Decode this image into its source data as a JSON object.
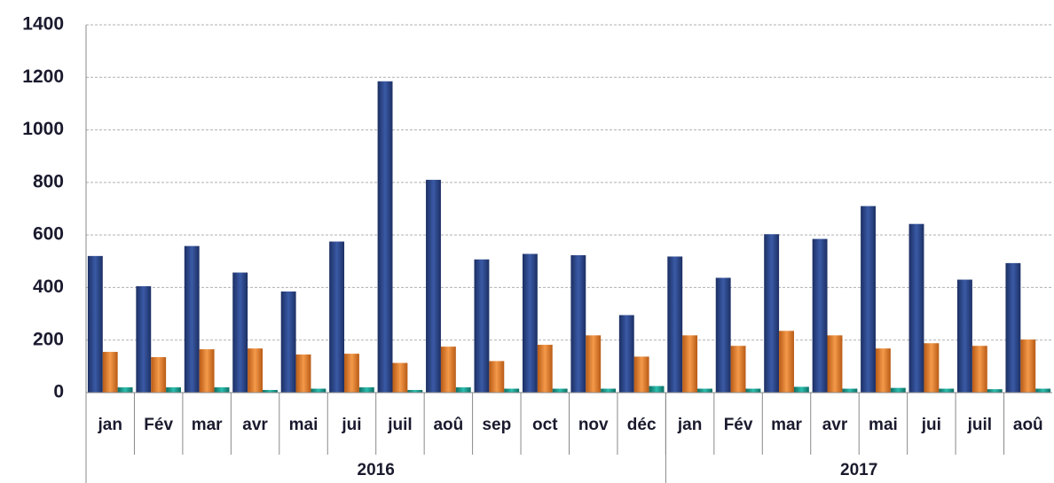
{
  "chart_data": {
    "type": "bar",
    "categories": [
      "jan",
      "Fév",
      "mar",
      "avr",
      "mai",
      "jui",
      "juil",
      "aoû",
      "sep",
      "oct",
      "nov",
      "déc",
      "jan",
      "Fév",
      "mar",
      "avr",
      "mai",
      "jui",
      "juil",
      "aoû"
    ],
    "groups": [
      {
        "label": "2016",
        "size": 12
      },
      {
        "label": "2017",
        "size": 8
      }
    ],
    "series": [
      {
        "color": "#2c4a8e",
        "values": [
          520,
          405,
          558,
          457,
          385,
          575,
          1185,
          810,
          507,
          528,
          523,
          295,
          518,
          437,
          603,
          585,
          710,
          642,
          430,
          493
        ]
      },
      {
        "color": "#e0782a",
        "values": [
          155,
          135,
          165,
          168,
          145,
          148,
          113,
          175,
          120,
          182,
          218,
          137,
          218,
          178,
          235,
          218,
          168,
          188,
          178,
          202
        ]
      },
      {
        "color": "#17968a",
        "values": [
          20,
          20,
          20,
          10,
          15,
          20,
          10,
          20,
          15,
          15,
          15,
          25,
          15,
          15,
          22,
          15,
          18,
          15,
          13,
          15
        ]
      }
    ],
    "ylim": [
      0,
      1400
    ],
    "yticks": [
      0,
      200,
      400,
      600,
      800,
      1000,
      1200,
      1400
    ],
    "grid": true
  }
}
